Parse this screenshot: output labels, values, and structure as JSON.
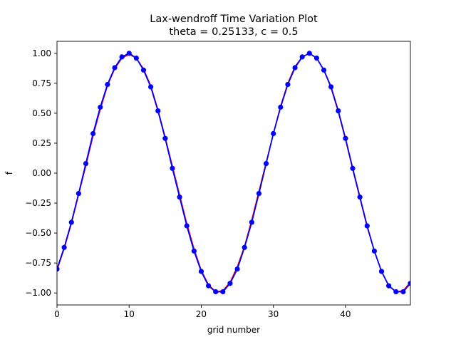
{
  "chart_data": {
    "type": "line",
    "title": "Lax-wendroff Time Variation Plot",
    "subtitle": "theta = 0.25133, c = 0.5",
    "xlabel": "grid number",
    "ylabel": "f",
    "xlim": [
      0,
      49
    ],
    "ylim": [
      -1.1,
      1.1
    ],
    "x_ticks": [
      0,
      10,
      20,
      30,
      40
    ],
    "x_tick_labels": [
      "0",
      "10",
      "20",
      "30",
      "40"
    ],
    "y_ticks": [
      -1.0,
      -0.75,
      -0.5,
      -0.25,
      0.0,
      0.25,
      0.5,
      0.75,
      1.0
    ],
    "y_tick_labels": [
      "−1.00",
      "−0.75",
      "−0.50",
      "−0.25",
      "0.00",
      "0.25",
      "0.50",
      "0.75",
      "1.00"
    ],
    "grid": false,
    "x": [
      0,
      1,
      2,
      3,
      4,
      5,
      6,
      7,
      8,
      9,
      10,
      11,
      12,
      13,
      14,
      15,
      16,
      17,
      18,
      19,
      20,
      21,
      22,
      23,
      24,
      25,
      26,
      27,
      28,
      29,
      30,
      31,
      32,
      33,
      34,
      35,
      36,
      37,
      38,
      39,
      40,
      41,
      42,
      43,
      44,
      45,
      46,
      47,
      48,
      49
    ],
    "series": [
      {
        "color": "#ff0000",
        "marker": "none",
        "values": [
          -0.81,
          -0.63,
          -0.42,
          -0.18,
          0.06,
          0.31,
          0.53,
          0.73,
          0.87,
          0.96,
          0.99,
          0.96,
          0.87,
          0.73,
          0.53,
          0.3,
          0.06,
          -0.18,
          -0.42,
          -0.63,
          -0.81,
          -0.93,
          -0.99,
          -0.98,
          -0.91,
          -0.78,
          -0.61,
          -0.39,
          -0.15,
          0.09,
          0.33,
          0.56,
          0.75,
          0.89,
          0.97,
          1.0,
          0.96,
          0.86,
          0.71,
          0.51,
          0.28,
          0.03,
          -0.21,
          -0.45,
          -0.65,
          -0.82,
          -0.94,
          -0.99,
          -0.98,
          -0.91
        ]
      },
      {
        "color": "#0000ff",
        "marker": "circle",
        "values": [
          -0.8,
          -0.62,
          -0.41,
          -0.17,
          0.08,
          0.33,
          0.55,
          0.74,
          0.88,
          0.97,
          1.0,
          0.96,
          0.86,
          0.72,
          0.52,
          0.29,
          0.04,
          -0.2,
          -0.44,
          -0.65,
          -0.82,
          -0.94,
          -0.99,
          -0.99,
          -0.92,
          -0.8,
          -0.62,
          -0.41,
          -0.17,
          0.08,
          0.33,
          0.55,
          0.74,
          0.88,
          0.97,
          1.0,
          0.96,
          0.86,
          0.72,
          0.52,
          0.29,
          0.04,
          -0.2,
          -0.44,
          -0.65,
          -0.82,
          -0.94,
          -0.99,
          -0.99,
          -0.92
        ]
      }
    ]
  }
}
